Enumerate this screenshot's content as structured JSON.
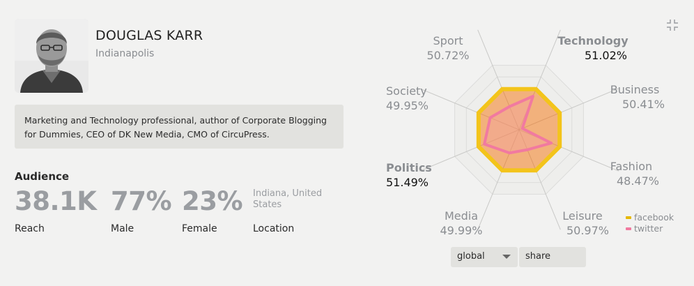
{
  "profile": {
    "name": "DOUGLAS KARR",
    "location": "Indianapolis",
    "bio": "Marketing and Technology professional, author of Corporate Blogging for Dummies, CEO of DK New Media, CMO of CircuPress."
  },
  "audience": {
    "title": "Audience",
    "stats": [
      {
        "value": "38.1K",
        "label": "Reach"
      },
      {
        "value": "77%",
        "label": "Male"
      },
      {
        "value": "23%",
        "label": "Female"
      },
      {
        "value": "Indiana, United States",
        "label": "Location"
      }
    ]
  },
  "chart_data": {
    "type": "radar",
    "axes": [
      {
        "name": "Technology",
        "percent": "51.02%",
        "highlight": true
      },
      {
        "name": "Business",
        "percent": "50.41%",
        "highlight": false
      },
      {
        "name": "Fashion",
        "percent": "48.47%",
        "highlight": false
      },
      {
        "name": "Leisure",
        "percent": "50.97%",
        "highlight": false
      },
      {
        "name": "Media",
        "percent": "49.99%",
        "highlight": false
      },
      {
        "name": "Politics",
        "percent": "51.49%",
        "highlight": true
      },
      {
        "name": "Society",
        "percent": "49.95%",
        "highlight": false
      },
      {
        "name": "Sport",
        "percent": "50.72%",
        "highlight": false
      }
    ],
    "series": [
      {
        "name": "facebook",
        "color": "#f3c41b",
        "fill": "#f2a668",
        "values": [
          0.63,
          0.63,
          0.63,
          0.63,
          0.63,
          0.63,
          0.63,
          0.63
        ]
      },
      {
        "name": "twitter",
        "color": "#f17aa0",
        "values": [
          0.52,
          0.05,
          0.5,
          0.31,
          0.36,
          0.54,
          0.45,
          0.36
        ]
      }
    ],
    "legend_position": "bottom-right"
  },
  "controls": {
    "scope_value": "global",
    "share_label": "share"
  },
  "colors": {
    "background": "#f2f2f1",
    "muted_text": "#8a8d91",
    "panel": "#e2e2df"
  }
}
